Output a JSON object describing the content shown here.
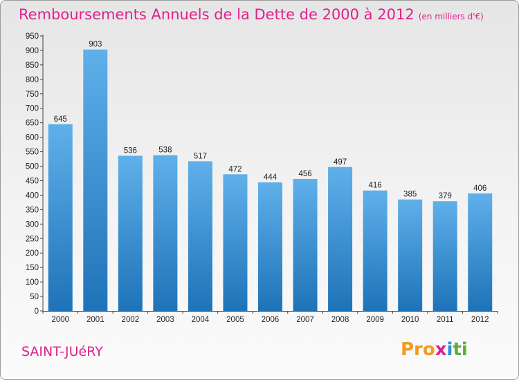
{
  "title": "Remboursements Annuels de la Dette de 2000 à 2012",
  "subtitle": "(en milliers d'€)",
  "city": "SAINT-JUéRY",
  "logo": {
    "p1": "Pro",
    "p2": "x",
    "p3": "i",
    "p4": "ti"
  },
  "chart_data": {
    "type": "bar",
    "categories": [
      "2000",
      "2001",
      "2002",
      "2003",
      "2004",
      "2005",
      "2006",
      "2007",
      "2008",
      "2009",
      "2010",
      "2011",
      "2012"
    ],
    "values": [
      645,
      903,
      536,
      538,
      517,
      472,
      444,
      456,
      497,
      416,
      385,
      379,
      406
    ],
    "title": "Remboursements Annuels de la Dette de 2000 à 2012",
    "subtitle": "(en milliers d'€)",
    "xlabel": "",
    "ylabel": "",
    "ylim": [
      0,
      950
    ],
    "yticks": [
      0,
      50,
      100,
      150,
      200,
      250,
      300,
      350,
      400,
      450,
      500,
      550,
      600,
      650,
      700,
      750,
      800,
      850,
      900,
      950
    ],
    "grid": false,
    "legend": "none",
    "colors": {
      "bar_top": "#5fb0ea",
      "bar_bottom": "#1e73b8",
      "title": "#e0208c"
    }
  }
}
